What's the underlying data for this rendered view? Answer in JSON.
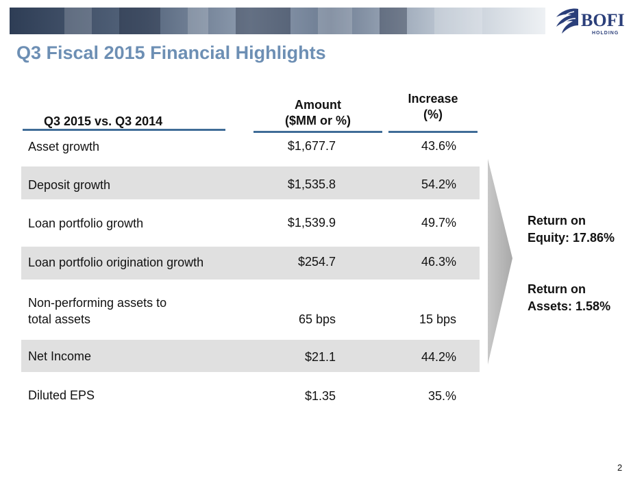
{
  "logo": {
    "main": "BOFI",
    "sub": "HOLDING"
  },
  "title": "Q3 Fiscal 2015 Financial Highlights",
  "table": {
    "label_header": "Q3 2015 vs. Q3 2014",
    "amount_header_1": "Amount",
    "amount_header_2": "($MM or %)",
    "increase_header_1": "Increase",
    "increase_header_2": "(%)",
    "rows": [
      {
        "label": "Asset growth",
        "amount": "$1,677.7",
        "increase": "43.6%"
      },
      {
        "label": "Deposit growth",
        "amount": "$1,535.8",
        "increase": "54.2%"
      },
      {
        "label": "Loan portfolio growth",
        "amount": "$1,539.9",
        "increase": "49.7%"
      },
      {
        "label": "Loan portfolio origination growth",
        "amount": "$254.7",
        "increase": "46.3%"
      },
      {
        "label_line1": "Non-performing assets to",
        "label_line2": "total assets",
        "amount": "65 bps",
        "increase": "15 bps"
      },
      {
        "label": "Net Income",
        "amount": "$21.1",
        "increase": "44.2%"
      },
      {
        "label": "Diluted EPS",
        "amount": "$1.35",
        "increase": "35.%"
      }
    ]
  },
  "callouts": {
    "roe_line1": "Return on",
    "roe_line2": "Equity: 17.86%",
    "roa_line1": "Return on",
    "roa_line2": "Assets: 1.58%"
  },
  "page_number": "2",
  "colors": {
    "title": "#6d8fb4",
    "rule": "#3f6c97",
    "shade": "#e0e0e0",
    "logo": "#2b3f7a"
  }
}
